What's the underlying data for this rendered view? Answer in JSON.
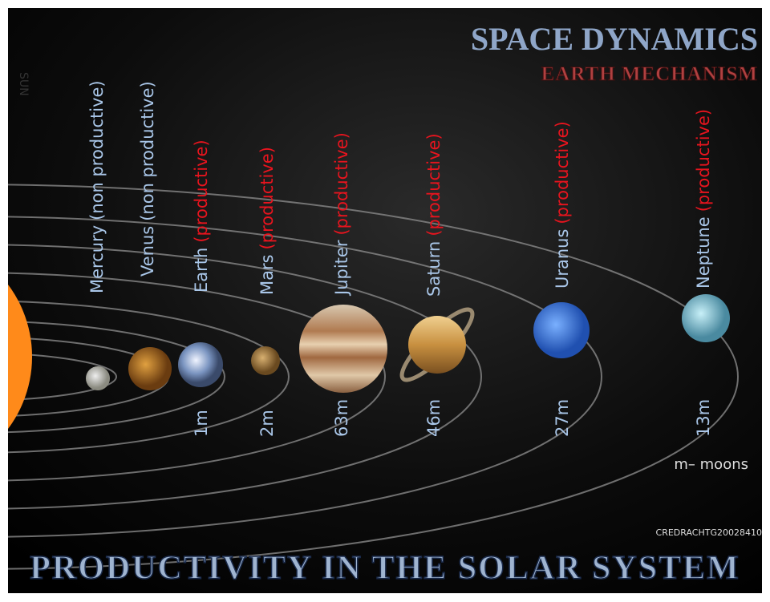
{
  "header": {
    "title": "SPACE DYNAMICS",
    "subtitle": "EARTH MECHANISM",
    "sun": "SUN"
  },
  "planets": [
    {
      "name": "Mercury",
      "status": "(non productive)"
    },
    {
      "name": "Venus",
      "status": "(non productive)"
    },
    {
      "name": "Earth",
      "status": "(productive)",
      "moons": "1m"
    },
    {
      "name": "Mars",
      "status": "(productive)",
      "moons": "2m"
    },
    {
      "name": "Jupiter",
      "status": "(productive)",
      "moons": "63m"
    },
    {
      "name": "Saturn",
      "status": "(productive)",
      "moons": "46m"
    },
    {
      "name": "Uranus",
      "status": "(productive)",
      "moons": "27m"
    },
    {
      "name": "Neptune",
      "status": "(productive)",
      "moons": "13m"
    }
  ],
  "legend": "m– moons",
  "credit": "CREDRACHTG20028410",
  "footer": "PRODUCTIVITY IN THE SOLAR SYSTEM"
}
